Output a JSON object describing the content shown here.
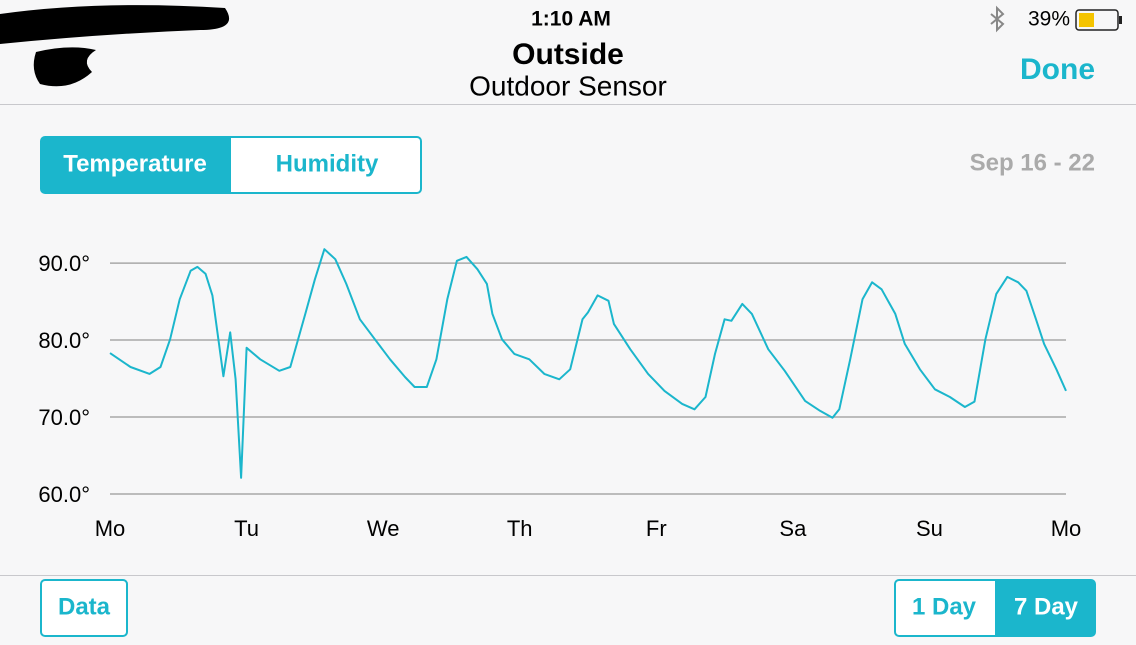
{
  "status_bar": {
    "time": "1:10 AM",
    "battery": "39%"
  },
  "nav": {
    "title": "Outside",
    "subtitle": "Outdoor Sensor",
    "done": "Done"
  },
  "segments": [
    "Temperature",
    "Humidity"
  ],
  "date_range": "Sep 16 - 22",
  "chart_data": {
    "type": "line",
    "color": "#1bb6cc",
    "grid": true,
    "xlim": [
      0,
      7
    ],
    "xticks": [
      {
        "value": 0,
        "label": "Mo"
      },
      {
        "value": 1,
        "label": "Tu"
      },
      {
        "value": 2,
        "label": "We"
      },
      {
        "value": 3,
        "label": "Th"
      },
      {
        "value": 4,
        "label": "Fr"
      },
      {
        "value": 5,
        "label": "Sa"
      },
      {
        "value": 6,
        "label": "Su"
      },
      {
        "value": 7,
        "label": "Mo"
      }
    ],
    "ylim": [
      60,
      93
    ],
    "yticks": [
      {
        "value": 60,
        "label": "60.0°"
      },
      {
        "value": 70,
        "label": "70.0°"
      },
      {
        "value": 80,
        "label": "80.0°"
      },
      {
        "value": 90,
        "label": "90.0°"
      }
    ],
    "x": [
      0,
      0.15,
      0.29,
      0.37,
      0.44,
      0.51,
      0.59,
      0.64,
      0.7,
      0.75,
      0.83,
      0.88,
      0.92,
      0.96,
      1.0,
      1.1,
      1.24,
      1.32,
      1.43,
      1.5,
      1.57,
      1.65,
      1.73,
      1.83,
      1.94,
      2.05,
      2.16,
      2.23,
      2.32,
      2.39,
      2.47,
      2.54,
      2.61,
      2.69,
      2.76,
      2.8,
      2.87,
      2.96,
      3.07,
      3.18,
      3.29,
      3.37,
      3.46,
      3.5,
      3.57,
      3.65,
      3.69,
      3.81,
      3.94,
      4.06,
      4.19,
      4.28,
      4.36,
      4.43,
      4.5,
      4.55,
      4.63,
      4.7,
      4.82,
      4.94,
      5.09,
      5.2,
      5.29,
      5.34,
      5.42,
      5.51,
      5.58,
      5.65,
      5.75,
      5.82,
      5.93,
      6.04,
      6.15,
      6.26,
      6.33,
      6.41,
      6.49,
      6.57,
      6.65,
      6.71,
      6.78,
      6.84,
      6.93,
      7.0
    ],
    "values": [
      78.3,
      76.5,
      75.6,
      76.5,
      80.1,
      85.3,
      89.0,
      89.5,
      88.6,
      85.8,
      75.3,
      81.0,
      74.9,
      62.1,
      79.0,
      77.5,
      76.0,
      76.5,
      83.4,
      87.9,
      91.8,
      90.5,
      87.3,
      82.7,
      80.1,
      77.5,
      75.2,
      73.9,
      73.9,
      77.5,
      85.3,
      90.3,
      90.8,
      89.2,
      87.3,
      83.4,
      80.1,
      78.2,
      77.5,
      75.6,
      74.9,
      76.2,
      82.7,
      83.6,
      85.8,
      85.1,
      82.1,
      78.8,
      75.6,
      73.4,
      71.7,
      71.0,
      72.6,
      78.2,
      82.7,
      82.5,
      84.7,
      83.4,
      78.8,
      76.0,
      72.1,
      70.8,
      69.9,
      71.0,
      77.5,
      85.3,
      87.5,
      86.6,
      83.4,
      79.5,
      76.2,
      73.6,
      72.6,
      71.3,
      72.0,
      80.1,
      86.0,
      88.2,
      87.5,
      86.4,
      82.7,
      79.5,
      76.2,
      73.4
    ]
  },
  "footer": {
    "data_button": "Data",
    "ranges": [
      "1 Day",
      "7 Day"
    ]
  }
}
